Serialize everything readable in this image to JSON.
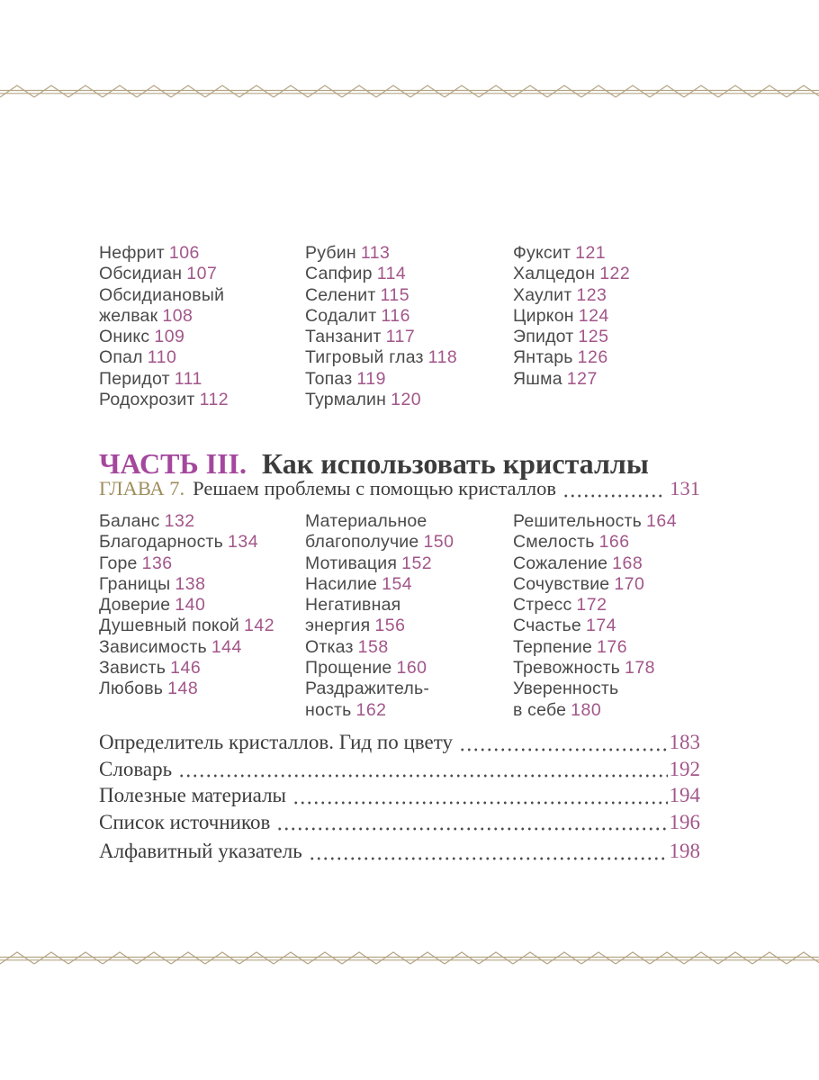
{
  "page": {
    "background": "#ffffff",
    "border_color": "#b5a585"
  },
  "colors": {
    "body_text": "#4a4a4a",
    "page_number": "#a25689",
    "part_label": "#a4479d",
    "chapter_label": "#9e8d5d",
    "serif_text": "#3c3c3c"
  },
  "crystal_index": {
    "columns": [
      {
        "items": [
          {
            "label": "Нефрит",
            "page": "106"
          },
          {
            "label": "Обсидиан",
            "page": "107"
          },
          {
            "label": "Обсидиановый\nжелвак",
            "page": "108"
          },
          {
            "label": "Оникс",
            "page": "109"
          },
          {
            "label": "Опал",
            "page": "110"
          },
          {
            "label": "Перидот",
            "page": "111"
          },
          {
            "label": "Родохрозит",
            "page": "112"
          }
        ]
      },
      {
        "items": [
          {
            "label": "Рубин",
            "page": "113"
          },
          {
            "label": "Сапфир",
            "page": "114"
          },
          {
            "label": "Селенит",
            "page": "115"
          },
          {
            "label": "Содалит",
            "page": "116"
          },
          {
            "label": "Танзанит",
            "page": "117"
          },
          {
            "label": "Тигровый глаз",
            "page": "118"
          },
          {
            "label": "Топаз",
            "page": "119"
          },
          {
            "label": "Турмалин",
            "page": "120"
          }
        ]
      },
      {
        "items": [
          {
            "label": "Фуксит",
            "page": "121"
          },
          {
            "label": "Халцедон",
            "page": "122"
          },
          {
            "label": "Хаулит",
            "page": "123"
          },
          {
            "label": "Циркон",
            "page": "124"
          },
          {
            "label": "Эпидот",
            "page": "125"
          },
          {
            "label": "Янтарь",
            "page": "126"
          },
          {
            "label": "Яшма",
            "page": "127"
          }
        ]
      }
    ]
  },
  "part": {
    "label": "ЧАСТЬ III.",
    "title": "Как использовать кристаллы"
  },
  "chapter": {
    "label": "ГЛАВА 7.",
    "title": "Решаем проблемы с помощью кристаллов",
    "page": "131"
  },
  "topics_index": {
    "columns": [
      {
        "items": [
          {
            "label": "Баланс",
            "page": "132"
          },
          {
            "label": "Благодарность",
            "page": "134"
          },
          {
            "label": "Горе",
            "page": "136"
          },
          {
            "label": "Границы",
            "page": "138"
          },
          {
            "label": "Доверие",
            "page": "140"
          },
          {
            "label": "Душевный покой",
            "page": "142"
          },
          {
            "label": "Зависимость",
            "page": "144"
          },
          {
            "label": "Зависть",
            "page": "146"
          },
          {
            "label": "Любовь",
            "page": "148"
          }
        ]
      },
      {
        "items": [
          {
            "label": "Материальное\nблагополучие",
            "page": "150"
          },
          {
            "label": "Мотивация",
            "page": "152"
          },
          {
            "label": "Насилие",
            "page": "154"
          },
          {
            "label": "Негативная\nэнергия",
            "page": "156"
          },
          {
            "label": "Отказ",
            "page": "158"
          },
          {
            "label": "Прощение",
            "page": "160"
          },
          {
            "label": "Раздражитель-\nность",
            "page": "162"
          }
        ]
      },
      {
        "items": [
          {
            "label": "Решительность",
            "page": "164"
          },
          {
            "label": "Смелость",
            "page": "166"
          },
          {
            "label": "Сожаление",
            "page": "168"
          },
          {
            "label": "Сочувствие",
            "page": "170"
          },
          {
            "label": "Стресс",
            "page": "172"
          },
          {
            "label": "Счастье",
            "page": "174"
          },
          {
            "label": "Терпение",
            "page": "176"
          },
          {
            "label": "Тревожность",
            "page": "178"
          },
          {
            "label": "Уверенность\nв себе",
            "page": "180"
          }
        ]
      }
    ]
  },
  "back_matter": [
    {
      "label": "Определитель кристаллов. Гид по цвету",
      "page": "183"
    },
    {
      "label": "Словарь ",
      "page": "192"
    },
    {
      "label": "Полезные материалы ",
      "page": "194"
    },
    {
      "label": "Список источников ",
      "page": "196"
    },
    {
      "label": "Алфавитный указатель ",
      "page": "198"
    }
  ]
}
